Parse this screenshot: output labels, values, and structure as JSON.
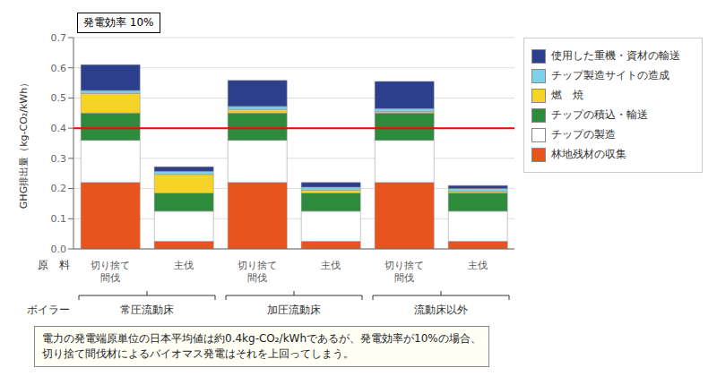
{
  "chart_data": {
    "type": "bar",
    "stacked": true,
    "categories": [
      "切り捨て\n間伐",
      "主伐",
      "切り捨て\n間伐",
      "主伐",
      "切り捨て\n間伐",
      "主伐"
    ],
    "groups": [
      "常圧流動床",
      "加圧流動床",
      "流動床以外"
    ],
    "xlabel": "原　料",
    "group_label": "ボイラー",
    "ylabel": "GHG排出量（kg-CO₂/kWh）",
    "annotation": "発電効率 10%",
    "caption": [
      "電力の発電端原単位の日本平均値は約0.4kg-CO₂/kWhであるが、発電効率が10%の場合、",
      "切り捨て間伐材によるバイオマス発電はそれを上回ってしまう。"
    ],
    "series": [
      {
        "name": "林地残材の収集",
        "color": "#e8541e",
        "values": [
          0.22,
          0.025,
          0.22,
          0.025,
          0.22,
          0.025
        ]
      },
      {
        "name": "チップの製造",
        "color": "#ffffff",
        "values": [
          0.14,
          0.1,
          0.14,
          0.1,
          0.14,
          0.1
        ]
      },
      {
        "name": "チップの積込・輸送",
        "color": "#2e8b3c",
        "values": [
          0.09,
          0.06,
          0.09,
          0.06,
          0.09,
          0.06
        ]
      },
      {
        "name": "燃　焼",
        "color": "#f5d327",
        "values": [
          0.065,
          0.062,
          0.012,
          0.01,
          0.005,
          0.005
        ]
      },
      {
        "name": "チップ製造サイトの造成",
        "color": "#7fd0ea",
        "values": [
          0.01,
          0.01,
          0.01,
          0.01,
          0.01,
          0.01
        ]
      },
      {
        "name": "使用した重機・資材の輸送",
        "color": "#2b3f8c",
        "values": [
          0.085,
          0.015,
          0.086,
          0.015,
          0.09,
          0.01
        ]
      }
    ],
    "ylim": [
      0,
      0.7
    ],
    "yticks": [
      {
        "value": 0,
        "label": "0.0"
      },
      0.1,
      0.2,
      0.3,
      0.4,
      0.5,
      0.6,
      0.7
    ],
    "reference_line": {
      "y": 0.4,
      "color": "#ff0000"
    },
    "grid": true,
    "legend": "right"
  }
}
